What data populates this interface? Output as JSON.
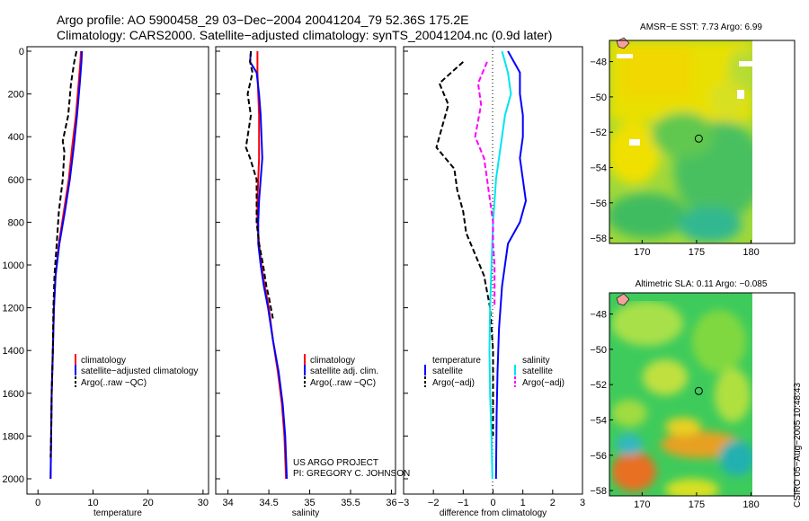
{
  "header": {
    "line1": "Argo profile: AO 5900458_29 03−Dec−2004 20041204_79 52.36S 175.2E",
    "line2": "Climatology: CARS2000. Satellite−adjusted climatology: synTS_20041204.nc (0.9d later)"
  },
  "credit": {
    "line1": "US ARGO PROJECT",
    "line2": "PI: GREGORY C. JOHNSON"
  },
  "timestamp": "CSIRO 05−Aug−2005 10:48:43",
  "colors": {
    "climatology": "#ff0000",
    "satellite": "#0000ff",
    "argo": "#000000",
    "salinity_satellite": "#00e5ee",
    "salinity_argo": "#ff00ff"
  },
  "chart_data": [
    {
      "type": "line",
      "panel": "temperature",
      "xlabel": "temperature",
      "xlim": [
        -2,
        31
      ],
      "xticks": [
        "0",
        "10",
        "20",
        "30"
      ],
      "ylim": [
        2000,
        0
      ],
      "yticks": [
        "0",
        "200",
        "400",
        "600",
        "800",
        "1000",
        "1200",
        "1400",
        "1600",
        "1800",
        "2000"
      ],
      "legend": [
        "climatology",
        "satellite−adjusted climatology",
        "Argo(..raw −QC)"
      ],
      "series": [
        {
          "name": "climatology",
          "color": "#ff0000",
          "dash": "",
          "points": [
            [
              7.8,
              0
            ],
            [
              7.7,
              50
            ],
            [
              7.4,
              150
            ],
            [
              6.9,
              300
            ],
            [
              6.2,
              450
            ],
            [
              5.6,
              600
            ],
            [
              4.7,
              750
            ],
            [
              3.8,
              900
            ],
            [
              3.2,
              1050
            ],
            [
              2.9,
              1200
            ],
            [
              2.7,
              1400
            ],
            [
              2.5,
              1600
            ],
            [
              2.4,
              1800
            ],
            [
              2.3,
              2000
            ]
          ]
        },
        {
          "name": "satellite−adjusted climatology",
          "color": "#0000ff",
          "dash": "",
          "points": [
            [
              8.0,
              0
            ],
            [
              7.9,
              50
            ],
            [
              7.6,
              150
            ],
            [
              7.1,
              300
            ],
            [
              6.5,
              450
            ],
            [
              5.8,
              600
            ],
            [
              4.9,
              750
            ],
            [
              3.9,
              900
            ],
            [
              3.2,
              1050
            ],
            [
              2.9,
              1200
            ],
            [
              2.7,
              1400
            ],
            [
              2.5,
              1600
            ],
            [
              2.4,
              1800
            ],
            [
              2.3,
              2000
            ]
          ]
        },
        {
          "name": "Argo(..raw −QC)",
          "color": "#000000",
          "dash": "6 3",
          "points": [
            [
              7.0,
              0
            ],
            [
              6.6,
              50
            ],
            [
              6.0,
              150
            ],
            [
              5.5,
              300
            ],
            [
              4.5,
              420
            ],
            [
              4.8,
              470
            ],
            [
              4.5,
              600
            ],
            [
              3.8,
              750
            ],
            [
              3.4,
              900
            ],
            [
              3.0,
              1050
            ],
            [
              2.8,
              1200
            ],
            [
              2.7,
              1400
            ],
            [
              2.5,
              1600
            ],
            [
              2.4,
              1800
            ],
            [
              2.3,
              1900
            ]
          ]
        }
      ]
    },
    {
      "type": "line",
      "panel": "salinity",
      "xlabel": "salinity",
      "xlim": [
        33.85,
        36.05
      ],
      "xticks": [
        "34",
        "34.5",
        "35",
        "35.5",
        "36"
      ],
      "ylim": [
        2000,
        0
      ],
      "legend": [
        "climatology",
        "satellite adj. clim.",
        "Argo(..raw −QC)"
      ],
      "series": [
        {
          "name": "climatology",
          "color": "#ff0000",
          "dash": "",
          "points": [
            [
              34.36,
              0
            ],
            [
              34.36,
              100
            ],
            [
              34.37,
              200
            ],
            [
              34.38,
              300
            ],
            [
              34.38,
              400
            ],
            [
              34.38,
              500
            ],
            [
              34.37,
              600
            ],
            [
              34.36,
              700
            ],
            [
              34.36,
              800
            ],
            [
              34.38,
              900
            ],
            [
              34.41,
              1000
            ],
            [
              34.45,
              1100
            ],
            [
              34.5,
              1200
            ],
            [
              34.55,
              1350
            ],
            [
              34.61,
              1500
            ],
            [
              34.66,
              1650
            ],
            [
              34.69,
              1800
            ],
            [
              34.71,
              2000
            ]
          ]
        },
        {
          "name": "satellite adj. clim.",
          "color": "#0000ff",
          "dash": "",
          "points": [
            [
              34.28,
              0
            ],
            [
              34.27,
              50
            ],
            [
              34.35,
              100
            ],
            [
              34.38,
              200
            ],
            [
              34.4,
              300
            ],
            [
              34.41,
              400
            ],
            [
              34.42,
              500
            ],
            [
              34.4,
              600
            ],
            [
              34.38,
              700
            ],
            [
              34.37,
              800
            ],
            [
              34.37,
              900
            ],
            [
              34.4,
              1000
            ],
            [
              34.44,
              1100
            ],
            [
              34.49,
              1200
            ],
            [
              34.55,
              1350
            ],
            [
              34.62,
              1500
            ],
            [
              34.67,
              1650
            ],
            [
              34.7,
              1800
            ],
            [
              34.72,
              2000
            ]
          ]
        },
        {
          "name": "Argo(..raw −QC)",
          "color": "#000000",
          "dash": "6 3",
          "points": [
            [
              34.28,
              0
            ],
            [
              34.27,
              50
            ],
            [
              34.3,
              100
            ],
            [
              34.24,
              200
            ],
            [
              34.28,
              300
            ],
            [
              34.22,
              450
            ],
            [
              34.27,
              500
            ],
            [
              34.35,
              600
            ],
            [
              34.35,
              700
            ],
            [
              34.35,
              800
            ],
            [
              34.38,
              900
            ],
            [
              34.43,
              1000
            ],
            [
              34.47,
              1100
            ],
            [
              34.5,
              1150
            ],
            [
              34.55,
              1250
            ]
          ]
        }
      ]
    },
    {
      "type": "line",
      "panel": "difference",
      "xlabel": "difference from climatology",
      "xlim": [
        -3,
        3
      ],
      "xticks": [
        "−3",
        "−2",
        "−1",
        "0",
        "1",
        "2",
        "3"
      ],
      "ylim": [
        2000,
        0
      ],
      "legend_temperature": [
        "temperature",
        "satellite",
        "Argo(−adj)"
      ],
      "legend_salinity": [
        "salinity",
        "satellite",
        "Argo(−adj)"
      ],
      "series": [
        {
          "name": "temperature satellite",
          "color": "#0000ff",
          "dash": "",
          "points": [
            [
              0.5,
              0
            ],
            [
              0.9,
              100
            ],
            [
              0.9,
              200
            ],
            [
              1.0,
              300
            ],
            [
              1.0,
              400
            ],
            [
              0.9,
              500
            ],
            [
              1.0,
              600
            ],
            [
              1.1,
              700
            ],
            [
              0.9,
              800
            ],
            [
              0.5,
              900
            ],
            [
              0.4,
              1000
            ],
            [
              0.3,
              1100
            ],
            [
              0.2,
              1300
            ],
            [
              0.15,
              1500
            ],
            [
              0.12,
              1700
            ],
            [
              0.1,
              2000
            ]
          ]
        },
        {
          "name": "temperature Argo(−adj)",
          "color": "#000000",
          "dash": "6 3",
          "points": [
            [
              -1.0,
              50
            ],
            [
              -1.8,
              150
            ],
            [
              -1.5,
              250
            ],
            [
              -1.7,
              350
            ],
            [
              -1.9,
              450
            ],
            [
              -1.3,
              550
            ],
            [
              -1.2,
              650
            ],
            [
              -1.0,
              750
            ],
            [
              -0.9,
              850
            ],
            [
              -0.6,
              950
            ],
            [
              -0.3,
              1050
            ],
            [
              -0.1,
              1200
            ],
            [
              0.0,
              1400
            ],
            [
              0.0,
              1600
            ],
            [
              0.0,
              1800
            ]
          ]
        },
        {
          "name": "salinity satellite",
          "color": "#00e5ee",
          "dash": "",
          "points": [
            [
              0.3,
              0
            ],
            [
              0.5,
              100
            ],
            [
              0.6,
              200
            ],
            [
              0.4,
              300
            ],
            [
              0.3,
              400
            ],
            [
              0.2,
              500
            ],
            [
              0.1,
              600
            ],
            [
              0.05,
              700
            ],
            [
              0.0,
              800
            ],
            [
              -0.05,
              1000
            ],
            [
              -0.1,
              1200
            ],
            [
              -0.12,
              1400
            ],
            [
              -0.1,
              1600
            ],
            [
              -0.05,
              1800
            ],
            [
              -0.02,
              2000
            ]
          ]
        },
        {
          "name": "salinity Argo(−adj)",
          "color": "#ff00ff",
          "dash": "6 3",
          "points": [
            [
              -0.2,
              50
            ],
            [
              -0.5,
              150
            ],
            [
              -0.4,
              250
            ],
            [
              -0.6,
              400
            ],
            [
              -0.3,
              500
            ],
            [
              -0.2,
              600
            ],
            [
              -0.1,
              700
            ],
            [
              0.0,
              800
            ],
            [
              0.0,
              900
            ],
            [
              0.05,
              1000
            ],
            [
              0.05,
              1200
            ]
          ]
        }
      ]
    },
    {
      "type": "heatmap",
      "panel": "sst_map",
      "title": "AMSR−E SST: 7.73 Argo: 6.99",
      "xticks": [
        "170",
        "175",
        "180"
      ],
      "yticks": [
        "−48",
        "−50",
        "−52",
        "−54",
        "−56",
        "−58"
      ],
      "xlim": [
        167,
        184
      ],
      "ylim": [
        -58.3,
        -46.8
      ],
      "float_position": [
        175.2,
        -52.36
      ]
    },
    {
      "type": "heatmap",
      "panel": "sla_map",
      "title": "Altimetric SLA: 0.11 Argo: −0.085",
      "xticks": [
        "170",
        "175",
        "180"
      ],
      "yticks": [
        "−48",
        "−50",
        "−52",
        "−54",
        "−56",
        "−58"
      ],
      "xlim": [
        167,
        184
      ],
      "ylim": [
        -58.3,
        -46.8
      ],
      "float_position": [
        175.2,
        -52.36
      ]
    }
  ]
}
